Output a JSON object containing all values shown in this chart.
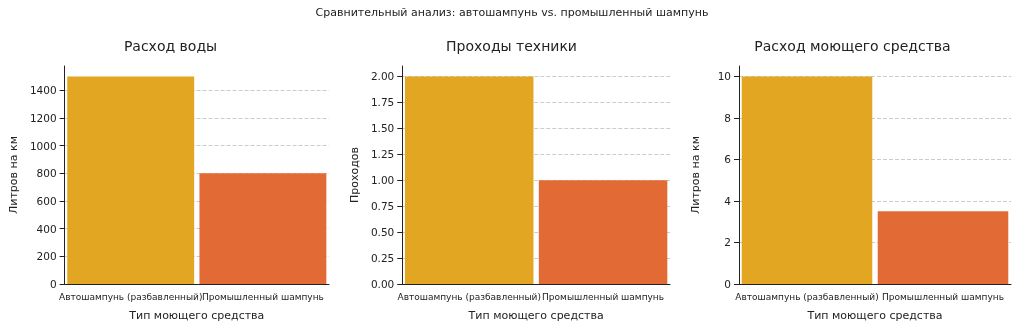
{
  "chart_data": [
    {
      "type": "bar",
      "title": "Расход воды",
      "xlabel": "Тип моющего средства",
      "ylabel": "Литров на км",
      "annotations": [
        "Сравнительный анализ: автошампунь vs. промышленный шампунь"
      ],
      "categories": [
        "Автошампунь (разбавленный)",
        "Промышленный шампунь"
      ],
      "values": [
        1500,
        800
      ],
      "colors": [
        "#e2a622",
        "#e26b35"
      ],
      "ylim": [
        0,
        1575
      ],
      "yticks": [
        0,
        200,
        400,
        600,
        800,
        1000,
        1200,
        1400
      ],
      "grid": "y"
    },
    {
      "type": "bar",
      "title": "Проходы техники",
      "xlabel": "Тип моющего средства",
      "ylabel": "Проходов",
      "categories": [
        "Автошампунь (разбавленный)",
        "Промышленный шампунь"
      ],
      "values": [
        2,
        1
      ],
      "colors": [
        "#e2a622",
        "#e26b35"
      ],
      "ylim": [
        0,
        2.1
      ],
      "yticks": [
        {
          "value": 0,
          "label": "0.00"
        },
        {
          "value": 0.25,
          "label": "0.25"
        },
        {
          "value": 0.5,
          "label": "0.50"
        },
        {
          "value": 0.75,
          "label": "0.75"
        },
        {
          "value": 1,
          "label": "1.00"
        },
        {
          "value": 1.25,
          "label": "1.25"
        },
        {
          "value": 1.5,
          "label": "1.50"
        },
        {
          "value": 1.75,
          "label": "1.75"
        },
        {
          "value": 2,
          "label": "2.00"
        }
      ],
      "grid": "y"
    },
    {
      "type": "bar",
      "title": "Расход моющего средства",
      "xlabel": "Тип моющего средства",
      "ylabel": "Литров на км",
      "categories": [
        "Автошампунь (разбавленный)",
        "Промышленный шампунь"
      ],
      "values": [
        10,
        3.5
      ],
      "colors": [
        "#e2a622",
        "#e26b35"
      ],
      "ylim": [
        0,
        10.5
      ],
      "yticks": [
        0,
        2,
        4,
        6,
        8,
        10
      ],
      "grid": "y"
    }
  ]
}
